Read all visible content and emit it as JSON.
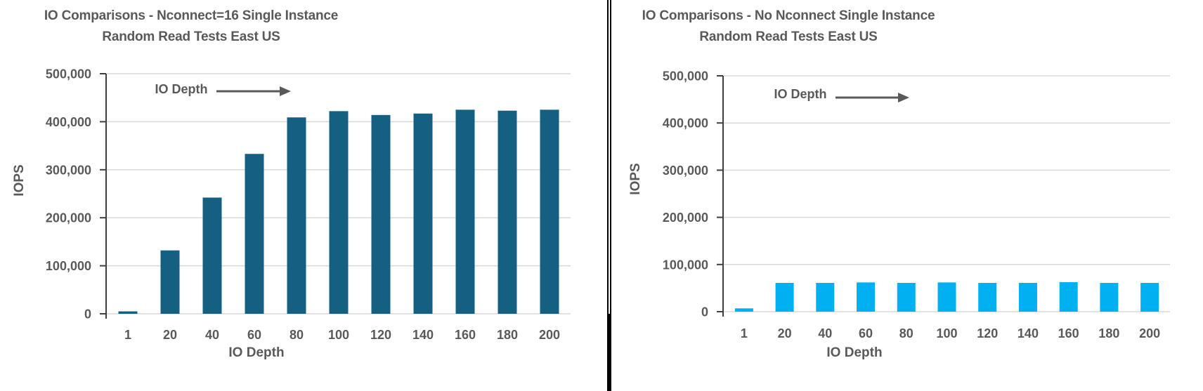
{
  "page": {
    "background_color": "#ffffff",
    "divider_color": "#000000",
    "text_color": "#595959",
    "gridline_color": "#d9d9d9",
    "axis_line_color": "#3f3f3f"
  },
  "chart_data": [
    {
      "type": "bar",
      "title_line1": "IO Comparisons -  Nconnect=16 Single Instance",
      "title_line2": "Random Read Tests East US",
      "xlabel": "IO Depth",
      "ylabel": "IOPS",
      "annotation_label": "IO Depth",
      "annotation_arrow": "right-arrow",
      "categories": [
        "1",
        "20",
        "40",
        "60",
        "80",
        "100",
        "120",
        "140",
        "160",
        "180",
        "200"
      ],
      "values": [
        5000,
        132000,
        242000,
        333000,
        409000,
        422000,
        414000,
        417000,
        425000,
        423000,
        425000
      ],
      "ylim": [
        0,
        500000
      ],
      "ytick_step": 100000,
      "y_ticks": [
        "0",
        "100,000",
        "200,000",
        "300,000",
        "400,000",
        "500,000"
      ],
      "grid": true,
      "legend": "none",
      "bar_color": "#156082"
    },
    {
      "type": "bar",
      "title_line1": "IO Comparisons - No Nconnect Single Instance",
      "title_line2": "Random Read Tests East US",
      "xlabel": "IO Depth",
      "ylabel": "IOPS",
      "annotation_label": "IO Depth",
      "annotation_arrow": "right-arrow",
      "categories": [
        "1",
        "20",
        "40",
        "60",
        "80",
        "100",
        "120",
        "140",
        "160",
        "180",
        "200"
      ],
      "values": [
        7000,
        61000,
        61000,
        62000,
        61000,
        62000,
        61000,
        61000,
        62500,
        61000,
        61000
      ],
      "ylim": [
        0,
        500000
      ],
      "ytick_step": 100000,
      "y_ticks": [
        "0",
        "100,000",
        "200,000",
        "300,000",
        "400,000",
        "500,000"
      ],
      "grid": true,
      "legend": "none",
      "bar_color": "#00b0f0"
    }
  ]
}
